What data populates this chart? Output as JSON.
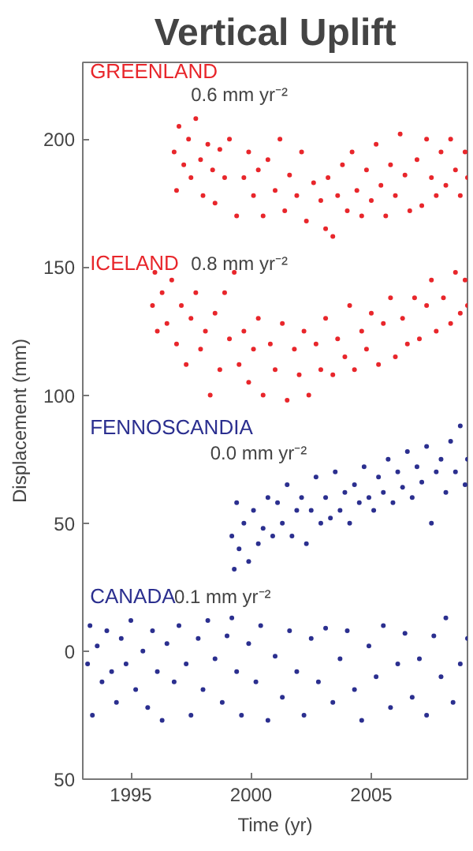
{
  "chart_data": {
    "type": "scatter",
    "title": "Vertical Uplift",
    "xlabel": "Time (yr)",
    "ylabel": "Displacement (mm)",
    "xlim": [
      1993,
      2009
    ],
    "xticks": [
      1995,
      2000,
      2005
    ],
    "ylim": [
      -50,
      230
    ],
    "yticks": [
      {
        "value": -50,
        "label": "50"
      },
      0,
      50,
      100,
      150,
      200
    ],
    "grid": false,
    "marker": "circle",
    "annotations": [
      "0.6 mm yr⁻²",
      "0.8 mm yr⁻²",
      "0.0 mm yr⁻²",
      "0.1 mm yr⁻²"
    ],
    "series": [
      {
        "name": "GREENLAND",
        "color": "#e8262b",
        "x": [
          1996.8,
          1996.9,
          1997.0,
          1997.2,
          1997.4,
          1997.5,
          1997.7,
          1997.9,
          1998.0,
          1998.2,
          1998.4,
          1998.5,
          1998.7,
          1998.9,
          1999.1,
          1999.4,
          1999.7,
          1999.9,
          2000.1,
          2000.3,
          2000.5,
          2000.7,
          2001.0,
          2001.2,
          2001.4,
          2001.6,
          2001.9,
          2002.1,
          2002.3,
          2002.6,
          2002.9,
          2003.1,
          2003.2,
          2003.4,
          2003.6,
          2003.8,
          2004.0,
          2004.2,
          2004.4,
          2004.6,
          2004.8,
          2005.0,
          2005.2,
          2005.4,
          2005.6,
          2005.8,
          2006.0,
          2006.2,
          2006.4,
          2006.6,
          2006.9,
          2007.1,
          2007.3,
          2007.5,
          2007.7,
          2007.9,
          2008.1,
          2008.3,
          2008.5,
          2008.7,
          2008.9,
          2009.0
        ],
        "values": [
          195,
          180,
          205,
          190,
          200,
          185,
          208,
          192,
          178,
          198,
          188,
          175,
          196,
          185,
          200,
          170,
          185,
          195,
          178,
          188,
          170,
          192,
          180,
          200,
          172,
          186,
          178,
          195,
          168,
          183,
          176,
          165,
          185,
          162,
          178,
          190,
          172,
          195,
          180,
          170,
          188,
          176,
          198,
          182,
          170,
          190,
          178,
          202,
          186,
          172,
          192,
          174,
          200,
          185,
          178,
          195,
          182,
          200,
          188,
          178,
          195,
          185
        ]
      },
      {
        "name": "ICELAND",
        "color": "#e8262b",
        "x": [
          1995.9,
          1996.0,
          1996.1,
          1996.3,
          1996.5,
          1996.7,
          1996.9,
          1997.1,
          1997.3,
          1997.5,
          1997.7,
          1997.9,
          1998.1,
          1998.3,
          1998.5,
          1998.7,
          1998.9,
          1999.1,
          1999.3,
          1999.5,
          1999.7,
          1999.9,
          2000.1,
          2000.3,
          2000.5,
          2000.8,
          2001.0,
          2001.3,
          2001.5,
          2001.8,
          2002.0,
          2002.2,
          2002.4,
          2002.7,
          2002.9,
          2003.1,
          2003.4,
          2003.6,
          2003.9,
          2004.1,
          2004.3,
          2004.6,
          2004.8,
          2005.0,
          2005.3,
          2005.5,
          2005.8,
          2006.0,
          2006.3,
          2006.5,
          2006.8,
          2007.0,
          2007.3,
          2007.5,
          2007.7,
          2008.0,
          2008.3,
          2008.5,
          2008.7,
          2008.9,
          2009.0
        ],
        "values": [
          135,
          148,
          125,
          140,
          128,
          145,
          120,
          135,
          112,
          130,
          140,
          118,
          125,
          100,
          132,
          110,
          140,
          122,
          148,
          112,
          125,
          105,
          118,
          130,
          100,
          120,
          110,
          128,
          98,
          118,
          108,
          125,
          100,
          120,
          110,
          130,
          108,
          122,
          115,
          135,
          110,
          125,
          118,
          132,
          112,
          128,
          138,
          115,
          130,
          120,
          138,
          122,
          135,
          145,
          125,
          138,
          128,
          148,
          132,
          145,
          135
        ]
      },
      {
        "name": "FENNOSCANDIA",
        "color": "#2b2f8f",
        "x": [
          1999.2,
          1999.3,
          1999.4,
          1999.5,
          1999.7,
          1999.9,
          2000.1,
          2000.3,
          2000.5,
          2000.7,
          2000.9,
          2001.1,
          2001.3,
          2001.5,
          2001.7,
          2001.9,
          2002.1,
          2002.3,
          2002.5,
          2002.7,
          2002.9,
          2003.1,
          2003.3,
          2003.5,
          2003.7,
          2003.9,
          2004.1,
          2004.3,
          2004.5,
          2004.7,
          2004.9,
          2005.1,
          2005.3,
          2005.5,
          2005.7,
          2005.9,
          2006.1,
          2006.3,
          2006.5,
          2006.7,
          2006.9,
          2007.1,
          2007.3,
          2007.5,
          2007.7,
          2007.9,
          2008.1,
          2008.3,
          2008.5,
          2008.7,
          2008.9,
          2009.0
        ],
        "values": [
          45,
          32,
          58,
          40,
          50,
          35,
          55,
          42,
          48,
          60,
          45,
          58,
          50,
          65,
          45,
          55,
          60,
          42,
          55,
          68,
          50,
          60,
          52,
          70,
          55,
          62,
          50,
          65,
          58,
          72,
          60,
          55,
          68,
          62,
          75,
          58,
          70,
          64,
          78,
          60,
          72,
          66,
          80,
          50,
          70,
          75,
          62,
          82,
          70,
          88,
          65,
          75
        ]
      },
      {
        "name": "CANADA",
        "color": "#2b2f8f",
        "x": [
          1993.2,
          1993.3,
          1993.4,
          1993.6,
          1993.8,
          1994.0,
          1994.2,
          1994.4,
          1994.6,
          1994.8,
          1995.0,
          1995.2,
          1995.5,
          1995.7,
          1995.9,
          1996.1,
          1996.3,
          1996.5,
          1996.8,
          1997.0,
          1997.3,
          1997.5,
          1997.8,
          1998.0,
          1998.2,
          1998.5,
          1998.8,
          1999.0,
          1999.2,
          1999.4,
          1999.6,
          1999.9,
          2000.2,
          2000.4,
          2000.7,
          2001.0,
          2001.3,
          2001.6,
          2001.9,
          2002.2,
          2002.5,
          2002.8,
          2003.1,
          2003.4,
          2003.7,
          2004.0,
          2004.3,
          2004.6,
          2004.9,
          2005.2,
          2005.5,
          2005.8,
          2006.1,
          2006.4,
          2006.7,
          2007.0,
          2007.3,
          2007.6,
          2007.9,
          2008.1,
          2008.4,
          2008.7,
          2009.0
        ],
        "values": [
          -5,
          10,
          -25,
          2,
          -12,
          8,
          -8,
          -20,
          5,
          -5,
          12,
          -15,
          0,
          -22,
          8,
          -8,
          -27,
          3,
          -12,
          10,
          -5,
          -25,
          5,
          -15,
          12,
          -3,
          -20,
          6,
          13,
          -8,
          -25,
          3,
          -12,
          10,
          -27,
          -2,
          -18,
          8,
          -8,
          -25,
          5,
          -12,
          9,
          -20,
          -3,
          8,
          -15,
          -27,
          2,
          -10,
          10,
          -22,
          -5,
          7,
          -18,
          -3,
          -25,
          6,
          -10,
          13,
          -20,
          -5,
          5
        ]
      }
    ]
  }
}
